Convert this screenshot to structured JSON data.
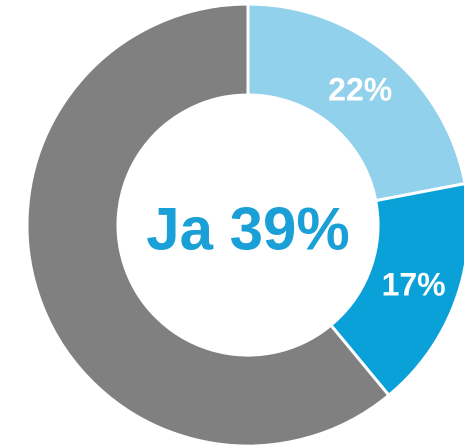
{
  "chart_data": {
    "type": "donut",
    "center_label": "Ja 39%",
    "values": [
      22,
      17,
      61
    ],
    "value_labels": [
      "22%",
      "17%",
      null
    ],
    "colors": [
      "#92d1ec",
      "#0aa1d8",
      "#808080"
    ]
  }
}
